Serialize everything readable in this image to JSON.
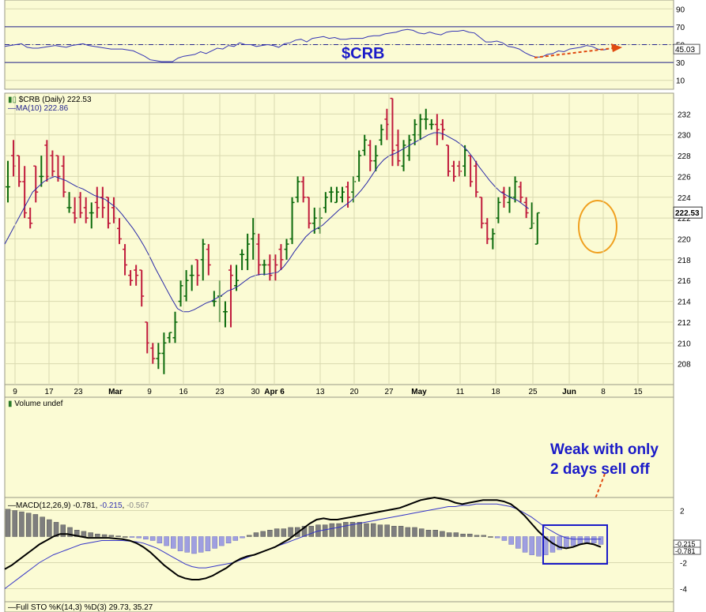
{
  "chart_data": [
    {
      "type": "line",
      "panel": "rsi",
      "ylim": [
        0,
        100
      ],
      "right_ticks": [
        10,
        30,
        50,
        70,
        90
      ],
      "upper_band": 70,
      "lower_band": 30,
      "midline": 50,
      "last_value": "45.03",
      "series_y": [
        48,
        49,
        50,
        51,
        47,
        46,
        46,
        47,
        48,
        49,
        48,
        47,
        49,
        50,
        51,
        49,
        48,
        47,
        46,
        45,
        45,
        45,
        44,
        43,
        40,
        37,
        33,
        32,
        31,
        31,
        31,
        35,
        37,
        38,
        39,
        42,
        40,
        43,
        46,
        45,
        49,
        48,
        52,
        50,
        50,
        48,
        49,
        50,
        49,
        47,
        51,
        52,
        55,
        56,
        53,
        57,
        58,
        59,
        57,
        58,
        56,
        56,
        57,
        57,
        57,
        59,
        60,
        60,
        62,
        63,
        64,
        66,
        67,
        66,
        63,
        62,
        64,
        62,
        61,
        64,
        65,
        65,
        66,
        64,
        63,
        58,
        53,
        53,
        54,
        52,
        48,
        47,
        45,
        41,
        38,
        36,
        36,
        39,
        40,
        43,
        42,
        45,
        46,
        47,
        49,
        48,
        45,
        44,
        45
      ]
    },
    {
      "type": "bar",
      "panel": "price",
      "title": "$CRB (Daily) 222.53",
      "subtitle": "MA(10) 222.86",
      "brand": "$CRB",
      "ylim": [
        206,
        234
      ],
      "right_ticks": [
        208,
        210,
        212,
        214,
        216,
        218,
        220,
        222,
        224,
        226,
        228,
        230,
        232
      ],
      "last_value": "222.53",
      "x_ticks": [
        "9",
        "17",
        "23",
        "Mar",
        "9",
        "16",
        "23",
        "30",
        "Apr 6",
        "13",
        "20",
        "27",
        "May",
        "11",
        "18",
        "25",
        "Jun",
        "8",
        "15"
      ],
      "x_tick_bold": [
        "Mar",
        "Apr 6",
        "May",
        "Jun"
      ],
      "bars_ohlc": [
        [
          225,
          227.5,
          223.5,
          225
        ],
        [
          228,
          229.5,
          226,
          227
        ],
        [
          228,
          228,
          225,
          225.5
        ],
        [
          225.5,
          227,
          222,
          222.5
        ],
        [
          222,
          223,
          221,
          221.5
        ],
        [
          227,
          227,
          223.5,
          224.5
        ],
        [
          226,
          228,
          225,
          226
        ],
        [
          229,
          229.5,
          225.5,
          226
        ],
        [
          228,
          228.5,
          226,
          226.5
        ],
        [
          228,
          228,
          225.5,
          226
        ],
        [
          227,
          228,
          224,
          224.5
        ],
        [
          223,
          224.5,
          222.5,
          223
        ],
        [
          222.5,
          224,
          221.5,
          222
        ],
        [
          224,
          224.5,
          222,
          222.5
        ],
        [
          223,
          224,
          221.5,
          222
        ],
        [
          222.5,
          223.5,
          221,
          222.5
        ],
        [
          223.5,
          225,
          222,
          223
        ],
        [
          224,
          225,
          222,
          223
        ],
        [
          224,
          224,
          221,
          221.5
        ],
        [
          223,
          224,
          221.5,
          222
        ],
        [
          221,
          222,
          219.5,
          220
        ],
        [
          219,
          219.5,
          216.5,
          217.5
        ],
        [
          216.5,
          217,
          215.5,
          216
        ],
        [
          217,
          217.5,
          215.5,
          216.5
        ],
        [
          217,
          217,
          213.5,
          214.5
        ],
        [
          212,
          212,
          209,
          210
        ],
        [
          209.5,
          210,
          208,
          208.5
        ],
        [
          208.5,
          210,
          207.5,
          209
        ],
        [
          209,
          211,
          207,
          210
        ],
        [
          210.5,
          211,
          210,
          211
        ],
        [
          210.5,
          213,
          210,
          212
        ],
        [
          214,
          216,
          213.5,
          215.5
        ],
        [
          214.5,
          217,
          214,
          216
        ],
        [
          216.5,
          217.5,
          215,
          216.5
        ],
        [
          218,
          218,
          215.5,
          216.5
        ],
        [
          218,
          220,
          216,
          219.5
        ],
        [
          219,
          219.5,
          216.5,
          217.5
        ],
        [
          214,
          215,
          213.5,
          214
        ],
        [
          214.5,
          216,
          212,
          214.5
        ],
        [
          213,
          214,
          211.5,
          213
        ],
        [
          217,
          217.5,
          211.5,
          216.5
        ],
        [
          215.5,
          217.5,
          215,
          216
        ],
        [
          218.5,
          219,
          217,
          218.5
        ],
        [
          218,
          220.5,
          217,
          219.5
        ],
        [
          220,
          222,
          218,
          220.5
        ],
        [
          219.5,
          220.5,
          216.5,
          217.5
        ],
        [
          217.5,
          218,
          216.5,
          217.5
        ],
        [
          217.5,
          218.5,
          216,
          216.5
        ],
        [
          218,
          218.5,
          216,
          217.5
        ],
        [
          219,
          219.5,
          217,
          218
        ],
        [
          219,
          220,
          218,
          219.5
        ],
        [
          220,
          224,
          219.5,
          223.5
        ],
        [
          224,
          226,
          223.5,
          225.5
        ],
        [
          225.5,
          226,
          223.5,
          224
        ],
        [
          224,
          224,
          221,
          221.5
        ],
        [
          221.5,
          223,
          220.5,
          222
        ],
        [
          221,
          223,
          220.5,
          222
        ],
        [
          223,
          224.5,
          222.5,
          224
        ],
        [
          224.5,
          225,
          223.5,
          224.5
        ],
        [
          223.5,
          225,
          223.5,
          224.5
        ],
        [
          224,
          225,
          223.5,
          224.5
        ],
        [
          225,
          225.5,
          223,
          224
        ],
        [
          224.5,
          226,
          223.5,
          225.5
        ],
        [
          226,
          228.5,
          225.5,
          228
        ],
        [
          228.5,
          230,
          228,
          229.5
        ],
        [
          229,
          229.5,
          226.5,
          227.5
        ],
        [
          227.5,
          229,
          226.5,
          228
        ],
        [
          229.5,
          231,
          229,
          230.5
        ],
        [
          231.5,
          232.5,
          229.5,
          231
        ],
        [
          233.5,
          233.5,
          227,
          228.5
        ],
        [
          229,
          230.5,
          227,
          227.5
        ],
        [
          227,
          229.5,
          226.5,
          229
        ],
        [
          228,
          230,
          227.5,
          229.5
        ],
        [
          230,
          231.5,
          229,
          231
        ],
        [
          230,
          232,
          229.5,
          231.5
        ],
        [
          231.5,
          232.5,
          230.5,
          231.5
        ],
        [
          231,
          231.5,
          230.5,
          231
        ],
        [
          231,
          232,
          229,
          230.5
        ],
        [
          231,
          231.5,
          229.5,
          230.5
        ],
        [
          229,
          229,
          226,
          226.5
        ],
        [
          227,
          227.5,
          225.5,
          226
        ],
        [
          227,
          227.5,
          226,
          226.5
        ],
        [
          227,
          229,
          226,
          228.5
        ],
        [
          228,
          228,
          225,
          225.5
        ],
        [
          227,
          227.5,
          224,
          224.5
        ],
        [
          224,
          224,
          221,
          221.5
        ],
        [
          221.5,
          222,
          219.5,
          220
        ],
        [
          220,
          221,
          219,
          220.5
        ],
        [
          222,
          224,
          221.5,
          223.5
        ],
        [
          224.5,
          225,
          223,
          224
        ],
        [
          223.5,
          225,
          222.5,
          224
        ],
        [
          224,
          226,
          223.5,
          225.5
        ],
        [
          225,
          225.5,
          223.5,
          224
        ],
        [
          223.5,
          224,
          222,
          222.5
        ],
        [
          221,
          223.5,
          221,
          221.5
        ],
        [
          219.5,
          222.5,
          219.5,
          222.5
        ]
      ],
      "series": [
        {
          "name": "MA(10)",
          "values": [
            219.5,
            220.5,
            221.5,
            222.5,
            223.5,
            224.5,
            225,
            225.5,
            225.8,
            226,
            225.8,
            225.6,
            225.3,
            225,
            224.8,
            224.5,
            224.2,
            224,
            223.8,
            223.4,
            223,
            222.4,
            221.7,
            221,
            220.2,
            219.3,
            218.3,
            217.2,
            216.2,
            215.2,
            214.2,
            213.3,
            213,
            213,
            213.2,
            213.5,
            213.8,
            214,
            214.3,
            214.6,
            215,
            215.2,
            215.5,
            215.9,
            216.3,
            216.5,
            216.6,
            216.6,
            216.7,
            216.8,
            217.3,
            218,
            218.8,
            219.5,
            220.2,
            220.7,
            221,
            221.3,
            221.8,
            222.3,
            222.8,
            223.2,
            223.6,
            224.1,
            224.7,
            225.4,
            226.2,
            227,
            227.6,
            228,
            228.2,
            228.5,
            228.8,
            229.1,
            229.4,
            229.7,
            230,
            230.2,
            230.2,
            230,
            229.7,
            229.4,
            229,
            228.5,
            227.8,
            227,
            226.3,
            225.6,
            225,
            224.5,
            224.2,
            223.9,
            223.7,
            223.3,
            222.9
          ]
        }
      ]
    },
    {
      "type": "bar",
      "panel": "volume",
      "title": "Volume undef",
      "annotations": [
        "Weak with only",
        "2 days sell off"
      ]
    },
    {
      "type": "line",
      "panel": "macd",
      "title": "MACD(12,26,9)",
      "values_text": [
        "-0.781",
        "-0.215",
        "-0.567"
      ],
      "value_colors": [
        "#000000",
        "#3030b0",
        "#888888"
      ],
      "ylim": [
        -5,
        3
      ],
      "right_ticks": [
        -4,
        -2,
        2
      ],
      "last_labels": [
        "-0.215",
        "-0.781"
      ],
      "histogram": [
        2.1,
        2.0,
        1.9,
        1.8,
        1.7,
        1.5,
        1.3,
        1.1,
        0.9,
        0.7,
        0.5,
        0.4,
        0.3,
        0.2,
        0.15,
        0.1,
        0.05,
        0,
        -0.05,
        -0.1,
        -0.2,
        -0.3,
        -0.5,
        -0.7,
        -0.9,
        -1.1,
        -1.2,
        -1.3,
        -1.2,
        -1.1,
        -0.9,
        -0.7,
        -0.5,
        -0.3,
        -0.1,
        0.1,
        0.3,
        0.4,
        0.5,
        0.6,
        0.6,
        0.7,
        0.7,
        0.8,
        0.8,
        0.9,
        0.9,
        1.0,
        1.0,
        1.1,
        1.1,
        1.1,
        1.0,
        1.0,
        0.9,
        0.9,
        0.8,
        0.8,
        0.7,
        0.7,
        0.6,
        0.5,
        0.5,
        0.4,
        0.3,
        0.3,
        0.2,
        0.2,
        0.1,
        0.1,
        0,
        -0.1,
        -0.3,
        -0.6,
        -0.9,
        -1.2,
        -1.4,
        -1.5,
        -1.4,
        -1.2,
        -1.0,
        -0.8,
        -0.7,
        -0.6,
        -0.5,
        -0.5,
        -0.6
      ],
      "series": [
        {
          "name": "MACD",
          "values": [
            -2.5,
            -2.2,
            -1.8,
            -1.4,
            -1.0,
            -0.6,
            -0.3,
            0,
            0.2,
            0.2,
            0.1,
            0,
            -0.1,
            -0.1,
            -0.1,
            -0.1,
            -0.15,
            -0.2,
            -0.3,
            -0.5,
            -0.8,
            -1.2,
            -1.7,
            -2.2,
            -2.6,
            -3.0,
            -3.2,
            -3.3,
            -3.3,
            -3.2,
            -3.0,
            -2.7,
            -2.4,
            -2.0,
            -1.7,
            -1.5,
            -1.4,
            -1.2,
            -1.0,
            -0.8,
            -0.5,
            -0.2,
            0.2,
            0.6,
            1.0,
            1.3,
            1.4,
            1.3,
            1.3,
            1.4,
            1.5,
            1.6,
            1.7,
            1.8,
            1.9,
            2.0,
            2.1,
            2.2,
            2.4,
            2.6,
            2.8,
            2.9,
            3.0,
            2.9,
            2.8,
            2.6,
            2.5,
            2.6,
            2.7,
            2.8,
            2.8,
            2.8,
            2.7,
            2.5,
            2.1,
            1.6,
            1.0,
            0.4,
            -0.1,
            -0.5,
            -0.8,
            -0.9,
            -0.8,
            -0.6,
            -0.5,
            -0.6,
            -0.8
          ]
        },
        {
          "name": "Signal",
          "values": [
            -4.0,
            -3.6,
            -3.2,
            -2.8,
            -2.4,
            -2.0,
            -1.7,
            -1.4,
            -1.2,
            -1.0,
            -0.8,
            -0.6,
            -0.5,
            -0.4,
            -0.3,
            -0.3,
            -0.3,
            -0.3,
            -0.35,
            -0.4,
            -0.5,
            -0.7,
            -0.9,
            -1.2,
            -1.5,
            -1.8,
            -2.1,
            -2.3,
            -2.4,
            -2.4,
            -2.3,
            -2.2,
            -2.1,
            -2.0,
            -1.8,
            -1.6,
            -1.4,
            -1.2,
            -1.0,
            -0.8,
            -0.6,
            -0.4,
            -0.2,
            0,
            0.2,
            0.4,
            0.5,
            0.6,
            0.7,
            0.8,
            0.9,
            1.0,
            1.1,
            1.2,
            1.3,
            1.4,
            1.5,
            1.6,
            1.7,
            1.8,
            1.9,
            2.0,
            2.1,
            2.2,
            2.3,
            2.3,
            2.4,
            2.4,
            2.5,
            2.5,
            2.5,
            2.5,
            2.4,
            2.3,
            2.1,
            1.8,
            1.5,
            1.1,
            0.7,
            0.4,
            0.1,
            -0.1,
            -0.2,
            -0.2,
            -0.2,
            -0.2,
            -0.2
          ]
        }
      ]
    },
    {
      "type": "line",
      "panel": "stochastic",
      "title": "Full STO %K(14,3) %D(3) 29.73, 35.27"
    }
  ]
}
